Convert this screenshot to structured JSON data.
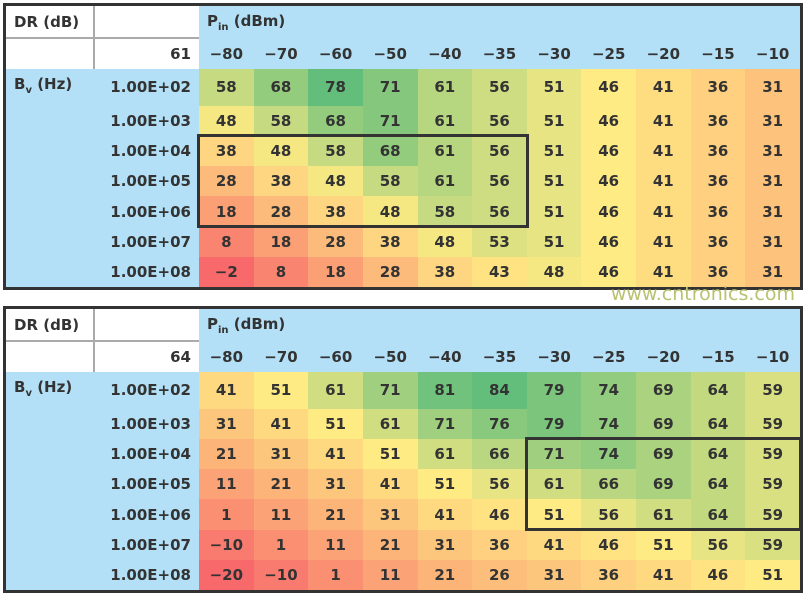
{
  "chart_data": [
    {
      "type": "heatmap",
      "corner_label": "DR (dB)",
      "value_label": "61",
      "col_header": {
        "main": "P",
        "sub": "in",
        "unit": " (dBm)"
      },
      "row_header": {
        "main": "B",
        "sub": "v",
        "unit": " (Hz)"
      },
      "columns": [
        "−80",
        "−70",
        "−60",
        "−50",
        "−40",
        "−35",
        "−30",
        "−25",
        "−20",
        "−15",
        "−10"
      ],
      "rows": [
        "1.00E+02",
        "1.00E+03",
        "1.00E+04",
        "1.00E+05",
        "1.00E+06",
        "1.00E+07",
        "1.00E+08"
      ],
      "values": [
        [
          58,
          68,
          78,
          71,
          61,
          56,
          51,
          46,
          41,
          36,
          31
        ],
        [
          48,
          58,
          68,
          71,
          61,
          56,
          51,
          46,
          41,
          36,
          31
        ],
        [
          38,
          48,
          58,
          68,
          61,
          56,
          51,
          46,
          41,
          36,
          31
        ],
        [
          28,
          38,
          48,
          58,
          61,
          56,
          51,
          46,
          41,
          36,
          31
        ],
        [
          18,
          28,
          38,
          48,
          58,
          56,
          51,
          46,
          41,
          36,
          31
        ],
        [
          8,
          18,
          28,
          38,
          48,
          53,
          51,
          46,
          41,
          36,
          31
        ],
        [
          -2,
          8,
          18,
          28,
          38,
          43,
          48,
          46,
          41,
          36,
          31
        ]
      ],
      "highlight": {
        "rows": [
          2,
          4
        ],
        "cols": [
          0,
          5
        ]
      }
    },
    {
      "type": "heatmap",
      "corner_label": "DR (dB)",
      "value_label": "64",
      "col_header": {
        "main": "P",
        "sub": "in",
        "unit": " (dBm)"
      },
      "row_header": {
        "main": "B",
        "sub": "v",
        "unit": " (Hz)"
      },
      "columns": [
        "−80",
        "−70",
        "−60",
        "−50",
        "−40",
        "−35",
        "−30",
        "−25",
        "−20",
        "−15",
        "−10"
      ],
      "rows": [
        "1.00E+02",
        "1.00E+03",
        "1.00E+04",
        "1.00E+05",
        "1.00E+06",
        "1.00E+07",
        "1.00E+08"
      ],
      "values": [
        [
          41,
          51,
          61,
          71,
          81,
          84,
          79,
          74,
          69,
          64,
          59
        ],
        [
          31,
          41,
          51,
          61,
          71,
          76,
          79,
          74,
          69,
          64,
          59
        ],
        [
          21,
          31,
          41,
          51,
          61,
          66,
          71,
          74,
          69,
          64,
          59
        ],
        [
          11,
          21,
          31,
          41,
          51,
          56,
          61,
          66,
          69,
          64,
          59
        ],
        [
          1,
          11,
          21,
          31,
          41,
          46,
          51,
          56,
          61,
          64,
          59
        ],
        [
          -10,
          1,
          11,
          21,
          31,
          36,
          41,
          46,
          51,
          56,
          59
        ],
        [
          -20,
          -10,
          1,
          11,
          21,
          26,
          31,
          36,
          41,
          46,
          51
        ]
      ],
      "highlight": {
        "rows": [
          2,
          4
        ],
        "cols": [
          6,
          10
        ]
      }
    }
  ],
  "colors": {
    "low": "#f8696b",
    "mid": "#ffeb84",
    "high": "#63be7b",
    "header": "#b3e0f6"
  },
  "watermark": "www.cntronics.com"
}
